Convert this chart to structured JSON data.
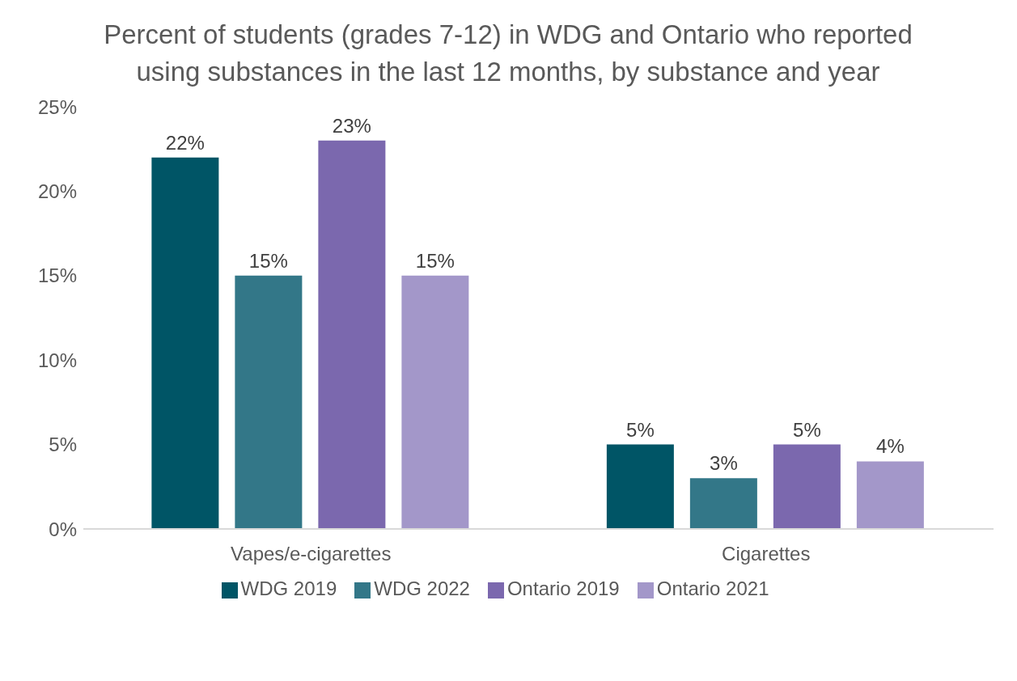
{
  "chart_data": {
    "type": "bar",
    "title": "Percent of students (grades 7-12) in WDG and Ontario who reported using substances in the last 12 months, by substance and year",
    "categories": [
      "Vapes/e-cigarettes",
      "Cigarettes"
    ],
    "series": [
      {
        "name": "WDG 2019",
        "color": "#005566",
        "values": [
          22,
          5
        ],
        "value_labels": [
          "22%",
          "5%"
        ]
      },
      {
        "name": "WDG 2022",
        "color": "#337788",
        "values": [
          15,
          3
        ],
        "value_labels": [
          "15%",
          "3%"
        ]
      },
      {
        "name": "Ontario 2019",
        "color": "#7b68ae",
        "values": [
          23,
          5
        ],
        "value_labels": [
          "23%",
          "5%"
        ]
      },
      {
        "name": "Ontario 2021",
        "color": "#a397c9",
        "values": [
          15,
          4
        ],
        "value_labels": [
          "15%",
          "4%"
        ]
      }
    ],
    "ylim": [
      0,
      25
    ],
    "yticks": [
      {
        "value": 0,
        "label": "0%"
      },
      {
        "value": 5,
        "label": "5%"
      },
      {
        "value": 10,
        "label": "10%"
      },
      {
        "value": 15,
        "label": "15%"
      },
      {
        "value": 20,
        "label": "20%"
      },
      {
        "value": 25,
        "label": "25%"
      }
    ],
    "grid": false,
    "legend": "bottom"
  }
}
